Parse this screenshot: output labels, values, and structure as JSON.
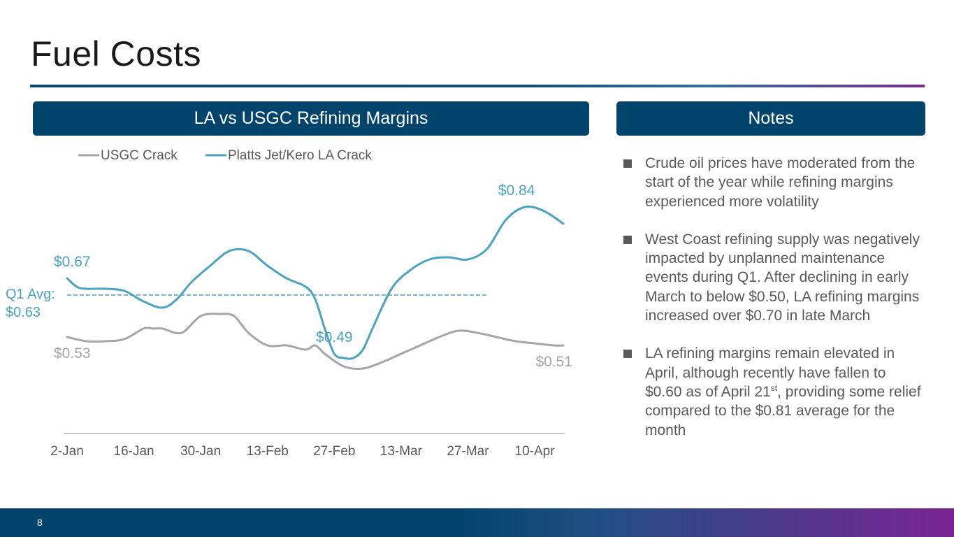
{
  "slide": {
    "title": "Fuel Costs",
    "page_number": "8",
    "colors": {
      "brand_navy": "#02446c",
      "accent_purple": "#7b2592"
    }
  },
  "chart_panel": {
    "header": "LA vs USGC Refining Margins"
  },
  "notes_panel": {
    "header": "Notes",
    "items": [
      {
        "text": "Crude oil prices have moderated from the start of the year while refining margins experienced more volatility"
      },
      {
        "text": "West Coast refining supply was negatively impacted by unplanned maintenance events during Q1. After declining in early March to below $0.50, LA refining margins increased over $0.70 in late March"
      },
      {
        "text_before": "LA refining margins remain elevated in April, although recently have fallen to $0.60 as of April 21",
        "superscript": "st",
        "text_after": ", providing some relief compared to the $0.81 average for the month"
      }
    ]
  },
  "chart_data": {
    "type": "line",
    "title": "LA vs USGC Refining Margins",
    "xlabel": "",
    "ylabel": "",
    "ylim": [
      0.3,
      0.9
    ],
    "grid": false,
    "legend_position": "top-left",
    "categories": [
      "2-Jan",
      "16-Jan",
      "30-Jan",
      "13-Feb",
      "27-Feb",
      "13-Mar",
      "27-Mar",
      "10-Apr"
    ],
    "x_day_range": [
      0,
      104
    ],
    "tick_days": [
      0,
      14,
      28,
      42,
      56,
      70,
      84,
      98
    ],
    "series": [
      {
        "name": "USGC Crack",
        "color": "#a6a6a6",
        "x": [
          0,
          4,
          8,
          12,
          16,
          18,
          20,
          24,
          28,
          32,
          35,
          38,
          42,
          46,
          50,
          52,
          54,
          58,
          62,
          66,
          70,
          74,
          78,
          82,
          86,
          90,
          94,
          98,
          102,
          104
        ],
        "values": [
          0.53,
          0.52,
          0.52,
          0.525,
          0.55,
          0.55,
          0.55,
          0.54,
          0.58,
          0.585,
          0.58,
          0.54,
          0.51,
          0.51,
          0.5,
          0.51,
          0.49,
          0.46,
          0.455,
          0.47,
          0.49,
          0.51,
          0.53,
          0.545,
          0.54,
          0.53,
          0.52,
          0.515,
          0.51,
          0.51
        ],
        "labels": [
          {
            "text": "$0.53",
            "index": 0,
            "position": "below"
          },
          {
            "text": "$0.51",
            "index": 29,
            "position": "below"
          }
        ]
      },
      {
        "name": "Platts Jet/Kero LA Crack",
        "color": "#4aa3c0",
        "x": [
          0,
          2,
          4,
          8,
          12,
          16,
          20,
          23,
          26,
          30,
          34,
          38,
          42,
          46,
          50,
          52,
          54,
          56,
          58,
          60,
          62,
          64,
          68,
          72,
          76,
          80,
          84,
          88,
          92,
          96,
          100,
          104
        ],
        "values": [
          0.67,
          0.65,
          0.645,
          0.645,
          0.64,
          0.615,
          0.6,
          0.62,
          0.66,
          0.7,
          0.735,
          0.735,
          0.7,
          0.67,
          0.65,
          0.62,
          0.55,
          0.49,
          0.48,
          0.48,
          0.5,
          0.55,
          0.645,
          0.69,
          0.715,
          0.72,
          0.715,
          0.74,
          0.81,
          0.84,
          0.83,
          0.8
        ],
        "labels": [
          {
            "text": "$0.67",
            "index": 0,
            "position": "above"
          },
          {
            "text": "$0.49",
            "index": 17,
            "position": "above"
          },
          {
            "text": "$0.84",
            "index": 29,
            "position": "above"
          }
        ]
      }
    ],
    "reference_line": {
      "name": "Q1 Avg",
      "value": 0.63,
      "x_range": [
        0,
        88
      ],
      "label_line1": "Q1 Avg:",
      "label_line2": "$0.63",
      "color": "#4aa3c0"
    },
    "axis_color": "#a6a6a6",
    "tick_label_color": "#595959"
  }
}
